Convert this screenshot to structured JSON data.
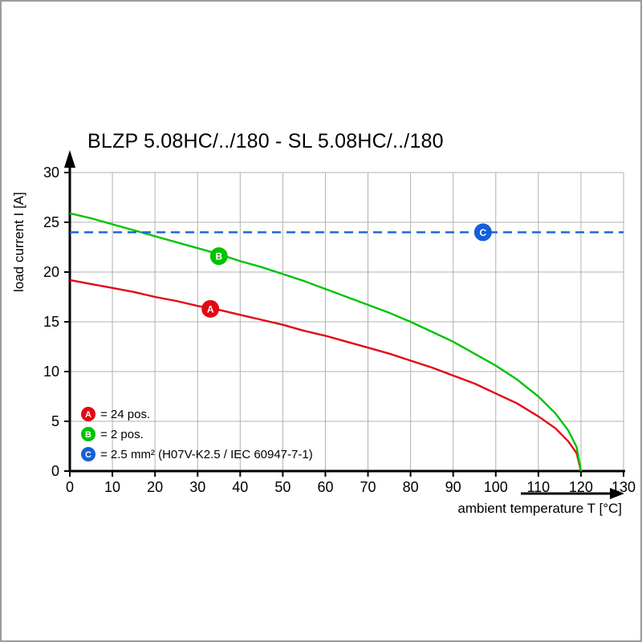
{
  "page": {
    "background": "#ffffff",
    "frame_border_color": "#9b9b9b"
  },
  "chart_data": {
    "type": "line",
    "title": "BLZP 5.08HC/../180 - SL 5.08HC/../180",
    "xlabel": "ambient temperature T [°C]",
    "ylabel": "load current I [A]",
    "xlim": [
      0,
      130
    ],
    "ylim": [
      0,
      30
    ],
    "xticks": [
      0,
      10,
      20,
      30,
      40,
      50,
      60,
      70,
      80,
      90,
      100,
      110,
      120,
      130
    ],
    "yticks": [
      0,
      5,
      10,
      15,
      20,
      25,
      30
    ],
    "grid": true,
    "grid_color": "#b0b0b0",
    "axis_color": "#000000",
    "legend_position": "bottom-left-inside",
    "series": [
      {
        "id": "A",
        "label": "A",
        "legend": "= 24 pos.",
        "color": "#e30613",
        "dash": "none",
        "marker": {
          "x": 33,
          "y": 16.3
        },
        "points": [
          [
            0,
            19.2
          ],
          [
            5,
            18.8
          ],
          [
            10,
            18.4
          ],
          [
            15,
            18.0
          ],
          [
            20,
            17.5
          ],
          [
            25,
            17.1
          ],
          [
            30,
            16.6
          ],
          [
            35,
            16.2
          ],
          [
            40,
            15.7
          ],
          [
            45,
            15.2
          ],
          [
            50,
            14.7
          ],
          [
            55,
            14.1
          ],
          [
            60,
            13.6
          ],
          [
            65,
            13.0
          ],
          [
            70,
            12.4
          ],
          [
            75,
            11.8
          ],
          [
            80,
            11.1
          ],
          [
            85,
            10.4
          ],
          [
            90,
            9.6
          ],
          [
            95,
            8.8
          ],
          [
            100,
            7.8
          ],
          [
            105,
            6.8
          ],
          [
            110,
            5.5
          ],
          [
            114,
            4.3
          ],
          [
            117,
            3.0
          ],
          [
            119,
            1.8
          ],
          [
            120,
            0
          ]
        ]
      },
      {
        "id": "B",
        "label": "B",
        "legend": "= 2 pos.",
        "color": "#00c300",
        "dash": "none",
        "marker": {
          "x": 35,
          "y": 21.6
        },
        "points": [
          [
            0,
            25.9
          ],
          [
            5,
            25.4
          ],
          [
            10,
            24.8
          ],
          [
            15,
            24.2
          ],
          [
            20,
            23.6
          ],
          [
            25,
            23.0
          ],
          [
            30,
            22.4
          ],
          [
            35,
            21.8
          ],
          [
            40,
            21.1
          ],
          [
            45,
            20.5
          ],
          [
            50,
            19.8
          ],
          [
            55,
            19.1
          ],
          [
            60,
            18.3
          ],
          [
            65,
            17.5
          ],
          [
            70,
            16.7
          ],
          [
            75,
            15.9
          ],
          [
            80,
            15.0
          ],
          [
            85,
            14.0
          ],
          [
            90,
            13.0
          ],
          [
            95,
            11.8
          ],
          [
            100,
            10.6
          ],
          [
            105,
            9.2
          ],
          [
            110,
            7.5
          ],
          [
            114,
            5.8
          ],
          [
            117,
            4.1
          ],
          [
            119,
            2.4
          ],
          [
            120,
            0
          ]
        ]
      },
      {
        "id": "C",
        "label": "C",
        "legend": "= 2.5 mm² (H07V-K2.5 / IEC 60947-7-1)",
        "color": "#1560d8",
        "dash": "11 7",
        "marker": {
          "x": 97,
          "y": 24
        },
        "points": [
          [
            0,
            24
          ],
          [
            130,
            24
          ]
        ]
      }
    ]
  }
}
